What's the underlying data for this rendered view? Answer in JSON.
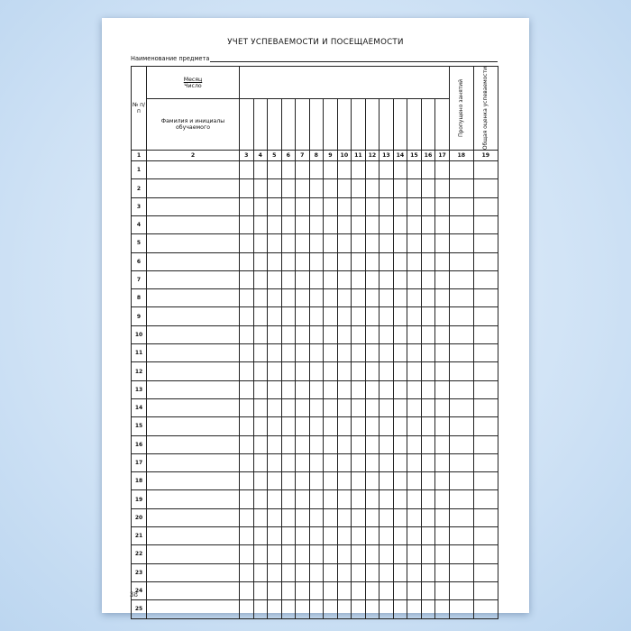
{
  "title": "УЧЕТ УСПЕВАЕМОСТИ И ПОСЕЩАЕМОСТИ",
  "subject_label": "Наименование предмета",
  "header": {
    "no": "№ п/п",
    "month": "Месяц",
    "date": "Число",
    "name": "Фамилия и инициалы обучаемого",
    "missed": "Пропущено занятий",
    "grade": "Общая оценка успеваемости"
  },
  "column_numbers": [
    "1",
    "2",
    "3",
    "4",
    "5",
    "6",
    "7",
    "8",
    "9",
    "10",
    "11",
    "12",
    "13",
    "14",
    "15",
    "16",
    "17",
    "18",
    "19"
  ],
  "rows": [
    "1",
    "2",
    "3",
    "4",
    "5",
    "6",
    "7",
    "8",
    "9",
    "10",
    "11",
    "12",
    "13",
    "14",
    "15",
    "16",
    "17",
    "18",
    "19",
    "20",
    "21",
    "22",
    "23",
    "24",
    "25"
  ],
  "page_number": "38"
}
